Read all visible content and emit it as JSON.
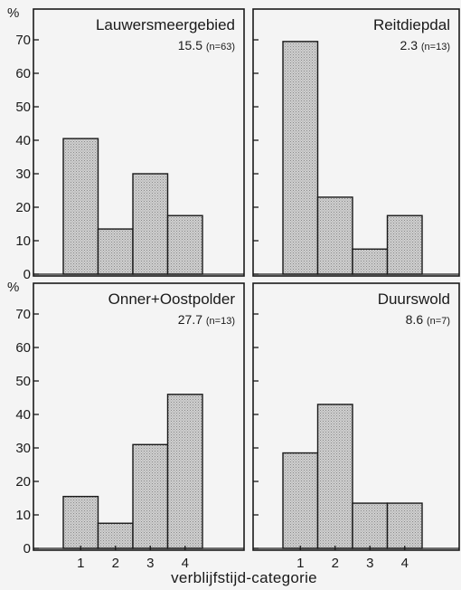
{
  "chart_data": [
    {
      "type": "bar",
      "title": "Lauwersmeergebied",
      "stat": "15.5",
      "n_label": "(n=63)",
      "ylabel": "%",
      "categories": [
        "1",
        "2",
        "3",
        "4"
      ],
      "values": [
        40.5,
        13.5,
        30,
        17.5
      ],
      "ylim": [
        0,
        75
      ],
      "yticks": [
        0,
        10,
        20,
        30,
        40,
        50,
        60,
        70
      ]
    },
    {
      "type": "bar",
      "title": "Reitdiepdal",
      "stat": "2.3",
      "n_label": "(n=13)",
      "categories": [
        "1",
        "2",
        "3",
        "4"
      ],
      "values": [
        69.5,
        23,
        7.5,
        17.5
      ],
      "ylim": [
        0,
        75
      ],
      "yticks": [
        0,
        10,
        20,
        30,
        40,
        50,
        60,
        70
      ]
    },
    {
      "type": "bar",
      "title": "Onner+Oostpolder",
      "stat": "27.7",
      "n_label": "(n=13)",
      "ylabel": "%",
      "categories": [
        "1",
        "2",
        "3",
        "4"
      ],
      "values": [
        15.5,
        7.5,
        31,
        46
      ],
      "ylim": [
        0,
        75
      ],
      "yticks": [
        0,
        10,
        20,
        30,
        40,
        50,
        60,
        70
      ]
    },
    {
      "type": "bar",
      "title": "Duurswold",
      "stat": "8.6",
      "n_label": "(n=7)",
      "categories": [
        "1",
        "2",
        "3",
        "4"
      ],
      "values": [
        28.5,
        43,
        13.5,
        13.5
      ],
      "ylim": [
        0,
        75
      ],
      "yticks": [
        0,
        10,
        20,
        30,
        40,
        50,
        60,
        70
      ]
    }
  ],
  "xlabel": "verblijfstijd-categorie",
  "colors": {
    "bar_fill": "#c4c4c4",
    "stroke": "#1a1a1a",
    "background": "#f4f4f4"
  }
}
